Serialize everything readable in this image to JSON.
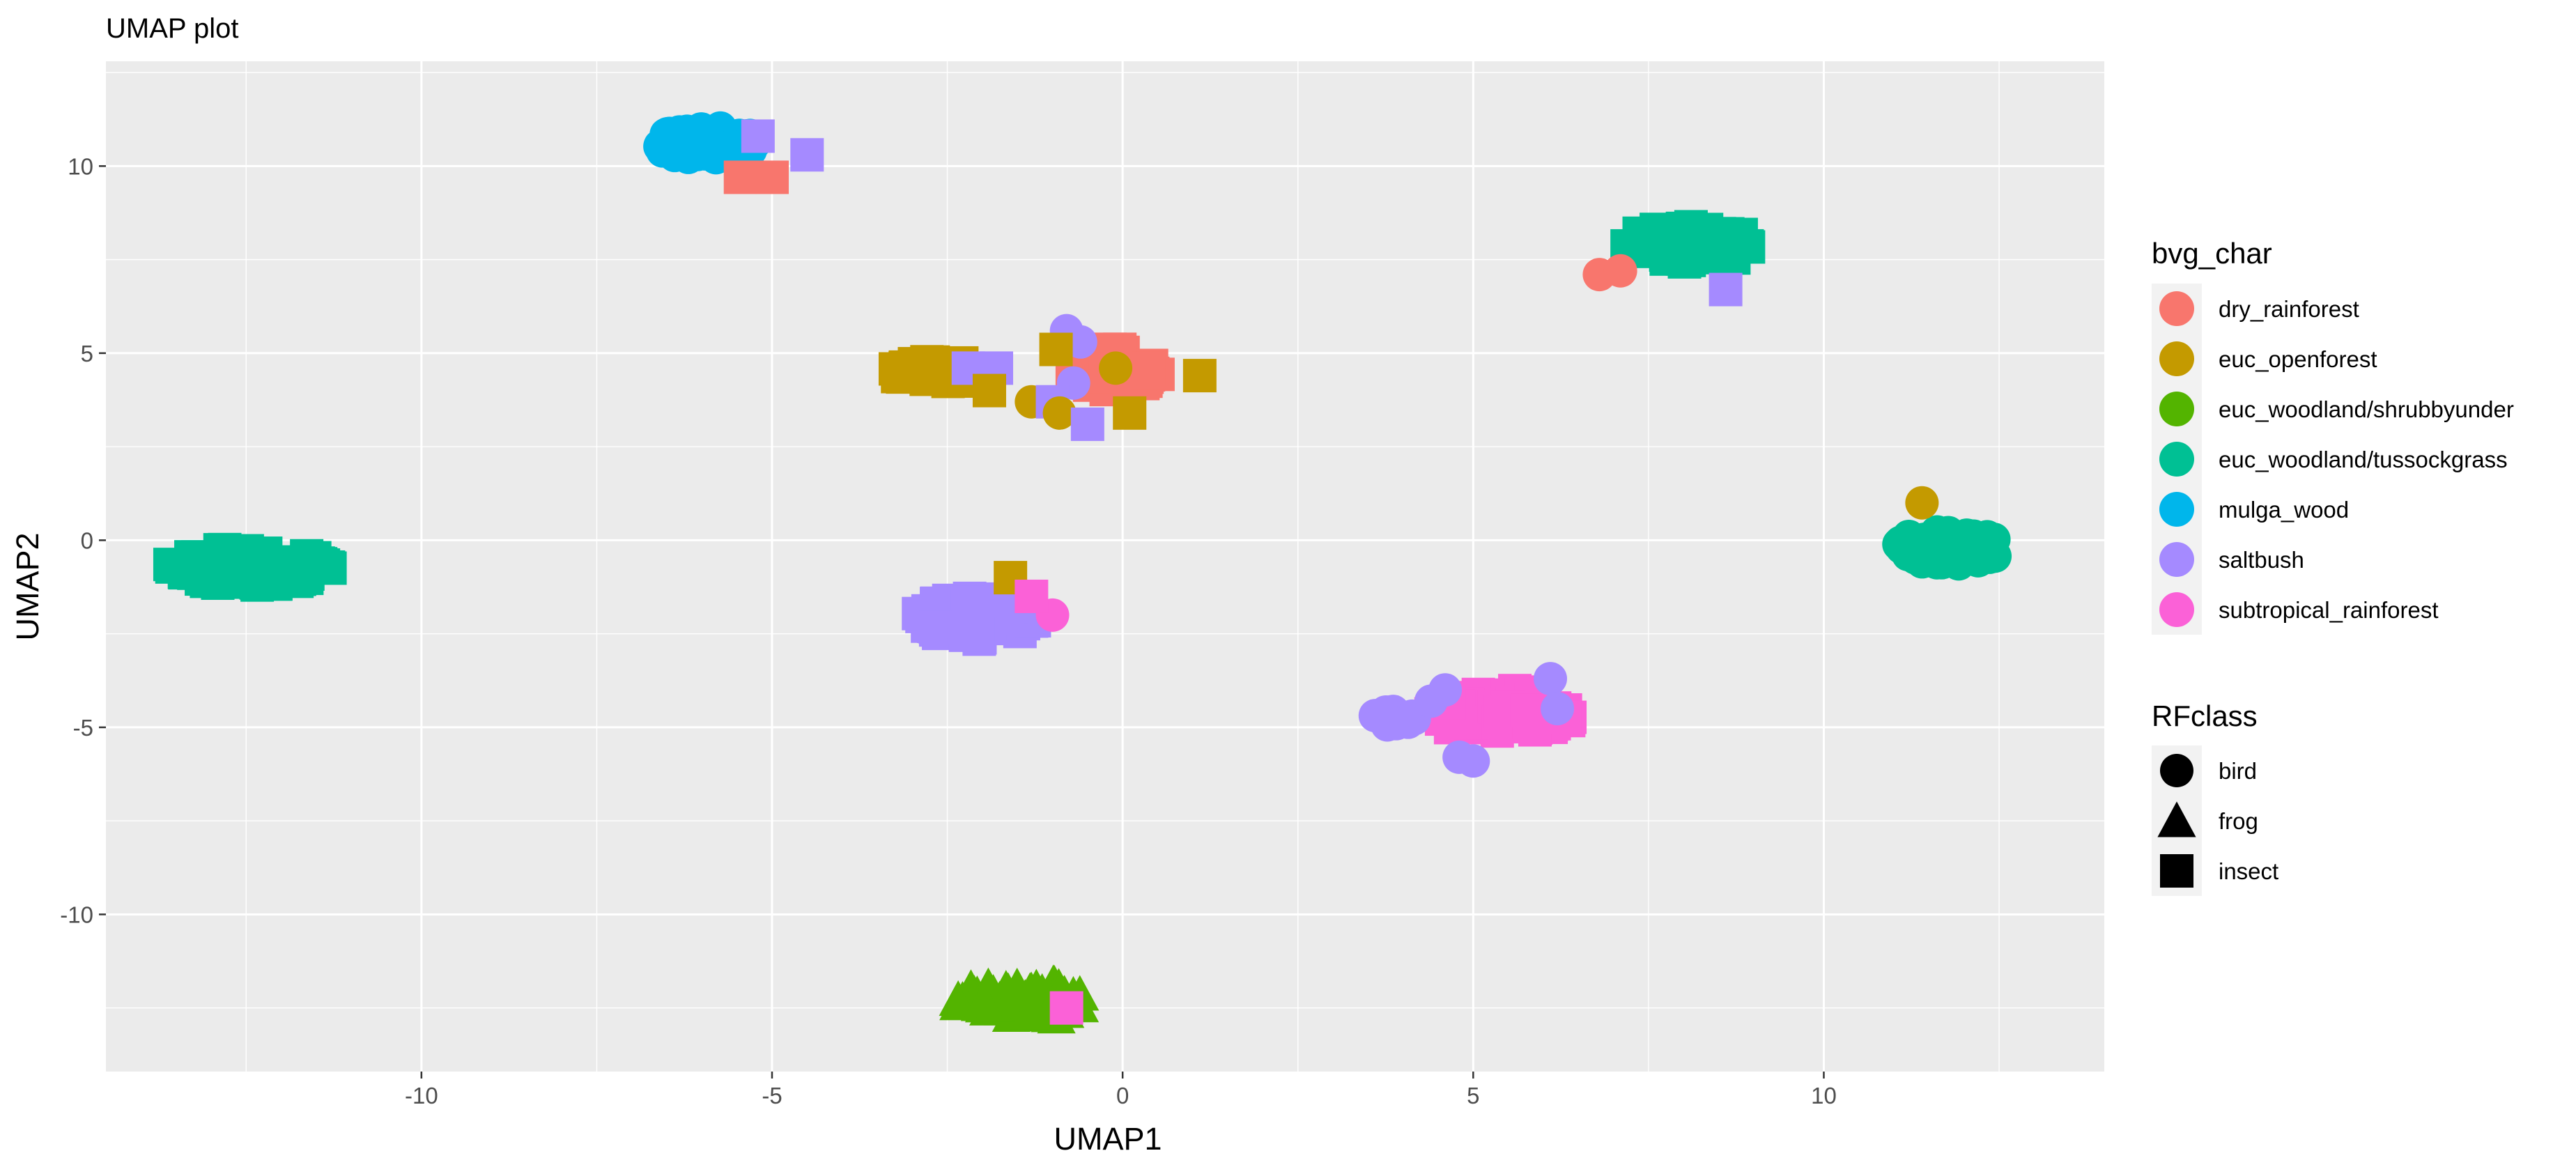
{
  "chart_data": {
    "type": "scatter",
    "title": "UMAP plot",
    "xlabel": "UMAP1",
    "ylabel": "UMAP2",
    "xlim": [
      -14.5,
      14.0
    ],
    "ylim": [
      -14.2,
      12.8
    ],
    "x_ticks": [
      -10,
      -5,
      0,
      5,
      10
    ],
    "x_tick_labels": [
      "-10",
      "-5",
      "0",
      "5",
      "10"
    ],
    "y_ticks": [
      -10,
      -5,
      0,
      5,
      10
    ],
    "y_tick_labels": [
      "-10",
      "-5",
      "0",
      "5",
      "10"
    ],
    "grid": true,
    "legend_position": "right",
    "color_legend": {
      "title": "bvg_char",
      "entries": [
        {
          "label": "dry_rainforest",
          "color": "#F8766D"
        },
        {
          "label": "euc_openforest",
          "color": "#C49A00"
        },
        {
          "label": "euc_woodland/shrubbyunder",
          "color": "#53B400"
        },
        {
          "label": "euc_woodland/tussockgrass",
          "color": "#00C094"
        },
        {
          "label": "mulga_wood",
          "color": "#00B6EB"
        },
        {
          "label": "saltbush",
          "color": "#A58AFF"
        },
        {
          "label": "subtropical_rainforest",
          "color": "#FB61D7"
        }
      ]
    },
    "shape_legend": {
      "title": "RFclass",
      "entries": [
        {
          "label": "bird",
          "shape": "circle"
        },
        {
          "label": "frog",
          "shape": "triangle"
        },
        {
          "label": "insect",
          "shape": "square"
        }
      ]
    },
    "clusters": [
      {
        "class": "mulga_wood",
        "center": [
          -5.9,
          10.6
        ],
        "spread": [
          0.75,
          0.45
        ],
        "shape": "circle",
        "n": 60
      },
      {
        "class": "euc_woodland/tussockgrass",
        "center": [
          8.1,
          7.9
        ],
        "spread": [
          0.95,
          0.5
        ],
        "shape": "square",
        "n": 60
      },
      {
        "class": "euc_openforest",
        "center": [
          -2.6,
          4.5
        ],
        "spread": [
          0.75,
          0.28
        ],
        "shape": "square",
        "n": 45
      },
      {
        "class": "dry_rainforest",
        "center": [
          -0.1,
          4.6
        ],
        "spread": [
          0.7,
          0.6
        ],
        "shape": "square",
        "n": 50
      },
      {
        "class": "euc_woodland/tussockgrass",
        "center": [
          -12.4,
          -0.7
        ],
        "spread": [
          1.2,
          0.5
        ],
        "shape": "square",
        "n": 75
      },
      {
        "class": "euc_woodland/tussockgrass",
        "center": [
          11.8,
          -0.2
        ],
        "spread": [
          0.8,
          0.45
        ],
        "shape": "circle",
        "n": 60
      },
      {
        "class": "saltbush",
        "center": [
          -2.1,
          -2.1
        ],
        "spread": [
          0.85,
          0.55
        ],
        "shape": "square",
        "n": 60
      },
      {
        "class": "subtropical_rainforest",
        "center": [
          5.4,
          -4.6
        ],
        "spread": [
          1.05,
          0.6
        ],
        "shape": "square",
        "n": 70
      },
      {
        "class": "saltbush",
        "center": [
          3.9,
          -4.8
        ],
        "spread": [
          0.35,
          0.25
        ],
        "shape": "circle",
        "n": 15
      },
      {
        "class": "euc_woodland/shrubbyunder",
        "center": [
          -1.4,
          -12.3
        ],
        "spread": [
          1.0,
          0.5
        ],
        "shape": "triangle",
        "n": 70
      }
    ],
    "points": [
      {
        "x": -5.2,
        "y": 10.8,
        "class": "saltbush",
        "shape": "square"
      },
      {
        "x": -5.0,
        "y": 9.7,
        "class": "dry_rainforest",
        "shape": "square"
      },
      {
        "x": -5.45,
        "y": 9.7,
        "class": "dry_rainforest",
        "shape": "square"
      },
      {
        "x": -4.5,
        "y": 10.3,
        "class": "saltbush",
        "shape": "square"
      },
      {
        "x": 6.8,
        "y": 7.1,
        "class": "dry_rainforest",
        "shape": "circle"
      },
      {
        "x": 7.1,
        "y": 7.2,
        "class": "dry_rainforest",
        "shape": "circle"
      },
      {
        "x": 8.6,
        "y": 6.7,
        "class": "saltbush",
        "shape": "square"
      },
      {
        "x": -0.8,
        "y": 5.6,
        "class": "saltbush",
        "shape": "circle"
      },
      {
        "x": -0.6,
        "y": 5.3,
        "class": "saltbush",
        "shape": "circle"
      },
      {
        "x": -2.2,
        "y": 4.6,
        "class": "saltbush",
        "shape": "square"
      },
      {
        "x": -1.8,
        "y": 4.6,
        "class": "saltbush",
        "shape": "square"
      },
      {
        "x": -1.9,
        "y": 4.0,
        "class": "euc_openforest",
        "shape": "square"
      },
      {
        "x": -0.1,
        "y": 4.6,
        "class": "euc_openforest",
        "shape": "circle"
      },
      {
        "x": 1.1,
        "y": 4.4,
        "class": "euc_openforest",
        "shape": "square"
      },
      {
        "x": -1.3,
        "y": 3.7,
        "class": "euc_openforest",
        "shape": "circle"
      },
      {
        "x": -0.7,
        "y": 4.2,
        "class": "saltbush",
        "shape": "circle"
      },
      {
        "x": -1.0,
        "y": 3.7,
        "class": "saltbush",
        "shape": "square"
      },
      {
        "x": -0.9,
        "y": 3.4,
        "class": "euc_openforest",
        "shape": "circle"
      },
      {
        "x": -0.5,
        "y": 3.1,
        "class": "saltbush",
        "shape": "square"
      },
      {
        "x": 0.1,
        "y": 3.4,
        "class": "euc_openforest",
        "shape": "square"
      },
      {
        "x": -0.95,
        "y": 5.1,
        "class": "euc_openforest",
        "shape": "square"
      },
      {
        "x": -1.6,
        "y": -1.0,
        "class": "euc_openforest",
        "shape": "square"
      },
      {
        "x": -1.0,
        "y": -2.0,
        "class": "subtropical_rainforest",
        "shape": "circle"
      },
      {
        "x": -1.3,
        "y": -1.5,
        "class": "subtropical_rainforest",
        "shape": "square"
      },
      {
        "x": 11.4,
        "y": 1.0,
        "class": "euc_openforest",
        "shape": "circle"
      },
      {
        "x": 4.4,
        "y": -4.3,
        "class": "saltbush",
        "shape": "circle"
      },
      {
        "x": 4.6,
        "y": -4.0,
        "class": "saltbush",
        "shape": "circle"
      },
      {
        "x": 4.8,
        "y": -5.8,
        "class": "saltbush",
        "shape": "circle"
      },
      {
        "x": 5.0,
        "y": -5.9,
        "class": "saltbush",
        "shape": "circle"
      },
      {
        "x": 6.1,
        "y": -3.7,
        "class": "saltbush",
        "shape": "circle"
      },
      {
        "x": 6.2,
        "y": -4.5,
        "class": "saltbush",
        "shape": "circle"
      },
      {
        "x": -0.8,
        "y": -12.5,
        "class": "subtropical_rainforest",
        "shape": "square"
      }
    ]
  }
}
